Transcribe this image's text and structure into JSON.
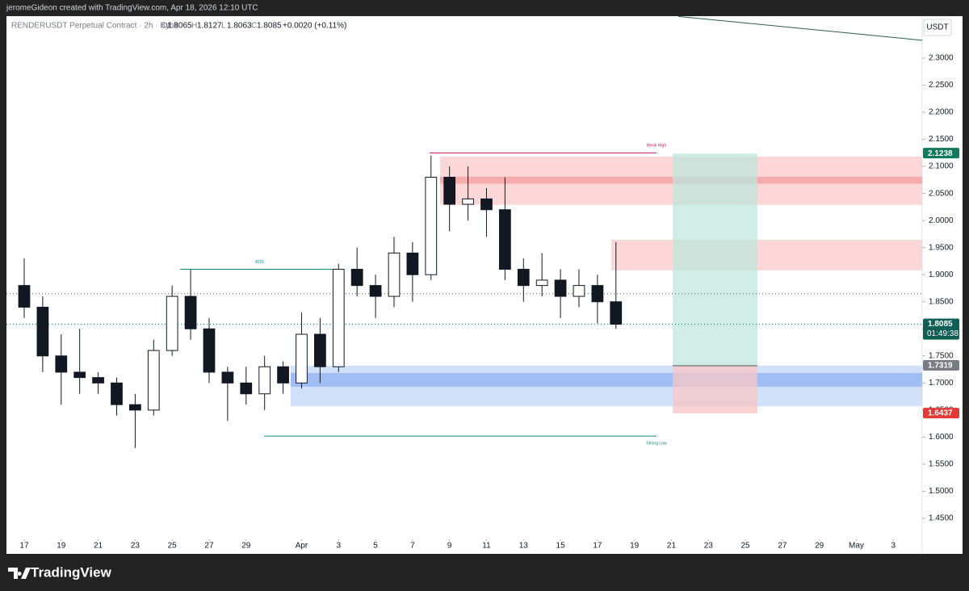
{
  "header": {
    "credit": "jeromeGideon created with TradingView.com, Apr 18, 2026 12:10 UTC",
    "brand": "TradingView"
  },
  "chart_data": {
    "type": "candlestick",
    "title": "RENDERUSDT Perpetual Contract · 2h · Bybit",
    "ohlc_legend": {
      "o_label": "O",
      "open": "1.8065",
      "h_label": "H",
      "high": "1.8127",
      "l_label": "L",
      "low": "1.8063",
      "c_label": "C",
      "close": "1.8085",
      "change": "+0.0020 (+0.11%)"
    },
    "currency": "USDT",
    "x": [
      0,
      1,
      2,
      3,
      4,
      5,
      6,
      7,
      8,
      9,
      10,
      11,
      12,
      13,
      14,
      15,
      16,
      17,
      18,
      19,
      20,
      21,
      22,
      23,
      24,
      25,
      26,
      27,
      28,
      29,
      30,
      31,
      32
    ],
    "open": [
      1.88,
      1.84,
      1.75,
      1.72,
      1.71,
      1.7,
      1.66,
      1.65,
      1.76,
      1.86,
      1.8,
      1.72,
      1.7,
      1.68,
      1.73,
      1.7,
      1.79,
      1.73,
      1.91,
      1.88,
      1.86,
      1.94,
      1.9,
      2.08,
      2.03,
      2.04,
      2.02,
      1.91,
      1.88,
      1.89,
      1.86,
      1.88,
      1.85
    ],
    "high": [
      1.93,
      1.86,
      1.79,
      1.8,
      1.72,
      1.71,
      1.68,
      1.78,
      1.88,
      1.91,
      1.82,
      1.73,
      1.73,
      1.75,
      1.74,
      1.83,
      1.82,
      1.92,
      1.95,
      1.9,
      1.97,
      1.96,
      2.12,
      2.1,
      2.1,
      2.06,
      2.08,
      1.93,
      1.94,
      1.91,
      1.91,
      1.9,
      1.96
    ],
    "low": [
      1.82,
      1.72,
      1.66,
      1.68,
      1.68,
      1.64,
      1.58,
      1.64,
      1.75,
      1.78,
      1.7,
      1.63,
      1.66,
      1.65,
      1.68,
      1.69,
      1.7,
      1.72,
      1.86,
      1.82,
      1.84,
      1.85,
      1.89,
      1.98,
      2.0,
      1.97,
      1.89,
      1.85,
      1.86,
      1.82,
      1.84,
      1.81,
      1.8
    ],
    "close": [
      1.84,
      1.75,
      1.72,
      1.71,
      1.7,
      1.66,
      1.65,
      1.76,
      1.86,
      1.8,
      1.72,
      1.7,
      1.68,
      1.73,
      1.7,
      1.79,
      1.73,
      1.91,
      1.88,
      1.86,
      1.94,
      1.9,
      2.08,
      2.03,
      2.04,
      2.02,
      1.91,
      1.88,
      1.89,
      1.86,
      1.88,
      1.85,
      1.8085
    ],
    "up_color": "#ffffff",
    "down_color": "#131722",
    "wick_color": "#131722",
    "xlim": [
      -0.96,
      48.56
    ],
    "ylim": [
      1.3844,
      2.3775
    ],
    "xticks": [
      {
        "value": 0,
        "label": "17"
      },
      {
        "value": 2,
        "label": "19"
      },
      {
        "value": 4,
        "label": "21"
      },
      {
        "value": 6,
        "label": "23"
      },
      {
        "value": 8,
        "label": "25"
      },
      {
        "value": 10,
        "label": "27"
      },
      {
        "value": 12,
        "label": "29"
      },
      {
        "value": 15,
        "label": "Apr"
      },
      {
        "value": 17,
        "label": "3"
      },
      {
        "value": 19,
        "label": "5"
      },
      {
        "value": 21,
        "label": "7"
      },
      {
        "value": 23,
        "label": "9"
      },
      {
        "value": 25,
        "label": "11"
      },
      {
        "value": 27,
        "label": "13"
      },
      {
        "value": 29,
        "label": "15"
      },
      {
        "value": 31,
        "label": "17"
      },
      {
        "value": 33,
        "label": "19"
      },
      {
        "value": 35,
        "label": "21"
      },
      {
        "value": 37,
        "label": "23"
      },
      {
        "value": 39,
        "label": "25"
      },
      {
        "value": 41,
        "label": "27"
      },
      {
        "value": 43,
        "label": "29"
      },
      {
        "value": 45,
        "label": "May"
      },
      {
        "value": 47,
        "label": "3"
      }
    ],
    "yticks": [
      {
        "value": 2.3,
        "label": "2.3000"
      },
      {
        "value": 2.25,
        "label": "2.2500"
      },
      {
        "value": 2.2,
        "label": "2.2000"
      },
      {
        "value": 2.15,
        "label": "2.1500"
      },
      {
        "value": 2.1,
        "label": "2.1000"
      },
      {
        "value": 2.05,
        "label": "2.0500"
      },
      {
        "value": 2.0,
        "label": "2.0000"
      },
      {
        "value": 1.95,
        "label": "1.9500"
      },
      {
        "value": 1.9,
        "label": "1.9000"
      },
      {
        "value": 1.85,
        "label": "1.8500"
      },
      {
        "value": 1.8,
        "label": "1.8000"
      },
      {
        "value": 1.75,
        "label": "1.7500"
      },
      {
        "value": 1.7,
        "label": "1.7000"
      },
      {
        "value": 1.65,
        "label": "1.6500"
      },
      {
        "value": 1.6,
        "label": "1.6000"
      },
      {
        "value": 1.55,
        "label": "1.5500"
      },
      {
        "value": 1.5,
        "label": "1.5000"
      },
      {
        "value": 1.45,
        "label": "1.4500"
      }
    ],
    "zones": [
      {
        "x0": 22.49,
        "x1": 48.56,
        "top": 2.118,
        "bottom": 2.029,
        "color": "#f8bcbc"
      },
      {
        "x0": 22.49,
        "x1": 48.56,
        "top": 2.081,
        "bottom": 2.068,
        "color": "#f09090"
      },
      {
        "x0": 31.75,
        "x1": 48.56,
        "top": 1.9645,
        "bottom": 1.908,
        "color": "#f8bcbc"
      },
      {
        "x0": 14.41,
        "x1": 48.56,
        "top": 1.732,
        "bottom": 1.657,
        "color": "#b4cdf6"
      },
      {
        "x0": 14.41,
        "x1": 48.56,
        "top": 1.7185,
        "bottom": 1.693,
        "color": "#7fa7ef"
      }
    ],
    "levels": [
      {
        "label": "Weak High",
        "x0": 21.92,
        "x1": 34.19,
        "value": 2.125,
        "color": "#c2185b"
      },
      {
        "label": "BOS",
        "x0": 8.43,
        "x1": 17.03,
        "value": 1.91,
        "color": "#0f8a7e"
      },
      {
        "label": "Strong Low",
        "x0": 12.97,
        "x1": 34.19,
        "value": 1.602,
        "color": "#0f8a7e"
      }
    ],
    "dotted_levels": [
      {
        "value": 1.8085,
        "color": "#0f6b5f"
      },
      {
        "value": 1.865,
        "color": "#555555"
      }
    ],
    "trendline": {
      "x": [
        35.37,
        48.56
      ],
      "y": [
        2.377,
        2.333
      ],
      "color": "#2e5b4e"
    },
    "position": {
      "x0": 35.07,
      "x1": 39.65,
      "target": 2.1238,
      "entry": 1.7319,
      "stop": 1.6437,
      "profit_color": "#bfe6dd",
      "loss_color": "#f8c4c4"
    },
    "price_labels": [
      {
        "value": 2.1238,
        "color": "#0f7a5c"
      },
      {
        "value": 1.8085,
        "color": "#0f5f55",
        "countdown": "01:49:38"
      },
      {
        "value": 1.7319,
        "color": "#787b86"
      },
      {
        "value": 1.6437,
        "color": "#e53935"
      }
    ]
  }
}
